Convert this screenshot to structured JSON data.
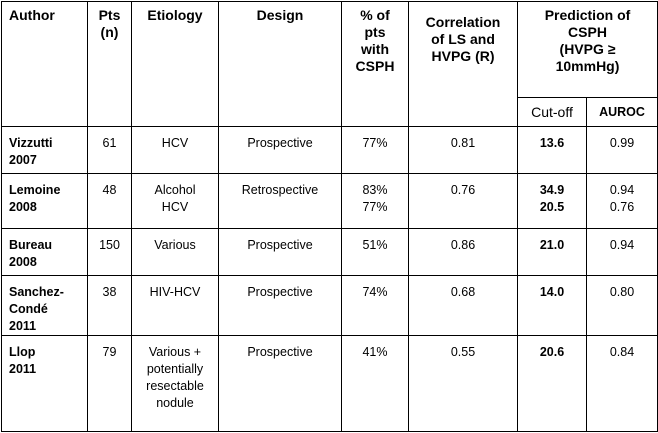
{
  "headers": {
    "author": "Author",
    "pts": [
      "Pts",
      "(n)"
    ],
    "etiology": "Etiology",
    "design": "Design",
    "pct": [
      "% of",
      "pts",
      "with",
      "CSPH"
    ],
    "correlation": [
      "Correlation",
      "of LS and",
      "HVPG (R)"
    ],
    "prediction": [
      "Prediction of",
      "CSPH",
      "(HVPG ≥",
      "10mmHg)"
    ],
    "cutoff": "Cut-off",
    "auroc": "AUROC"
  },
  "rows": [
    {
      "author": [
        "Vizzutti",
        "2007"
      ],
      "pts": "61",
      "etiology": [
        "HCV"
      ],
      "design": "Prospective",
      "pct": [
        "77%"
      ],
      "r": "0.81",
      "cutoff": [
        "13.6"
      ],
      "auroc": [
        "0.99"
      ]
    },
    {
      "author": [
        "Lemoine",
        "2008"
      ],
      "pts": "48",
      "etiology": [
        "Alcohol",
        "HCV"
      ],
      "design": "Retrospective",
      "pct": [
        "83%",
        "77%"
      ],
      "r": "0.76",
      "cutoff": [
        "34.9",
        "20.5"
      ],
      "auroc": [
        "0.94",
        "0.76"
      ]
    },
    {
      "author": [
        "Bureau",
        "2008"
      ],
      "pts": "150",
      "etiology": [
        "Various"
      ],
      "design": "Prospective",
      "pct": [
        "51%"
      ],
      "r": "0.86",
      "cutoff": [
        "21.0"
      ],
      "auroc": [
        "0.94"
      ]
    },
    {
      "author": [
        "Sanchez-",
        "Condé",
        "2011"
      ],
      "pts": "38",
      "etiology": [
        "HIV-HCV"
      ],
      "design": "Prospective",
      "pct": [
        "74%"
      ],
      "r": "0.68",
      "cutoff": [
        "14.0"
      ],
      "auroc": [
        "0.80"
      ]
    },
    {
      "author": [
        "Llop",
        "2011"
      ],
      "pts": "79",
      "etiology": [
        "Various +",
        "potentially",
        "resectable",
        "nodule"
      ],
      "design": "Prospective",
      "pct": [
        "41%"
      ],
      "r": "0.55",
      "cutoff": [
        "20.6"
      ],
      "auroc": [
        "0.84"
      ]
    }
  ]
}
